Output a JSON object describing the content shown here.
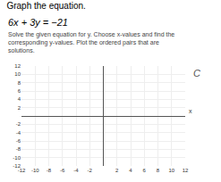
{
  "chart_data": {
    "type": "scatter",
    "title": "Graph the equation.",
    "subtitle": "6x + 3y = −21",
    "annotations": [
      "Solve the given equation for y. Choose x-values and find the corresponding y-values. Plot the ordered pairs that are solutions.",
      "C"
    ],
    "xlabel": "x",
    "xlim": [
      -12,
      12
    ],
    "ylim": [
      -12,
      12
    ],
    "xticks": [
      -12,
      -10,
      -8,
      -6,
      -4,
      -2,
      {
        "value": 0,
        "label": null
      },
      2,
      4,
      6,
      8,
      10,
      12
    ],
    "yticks": [
      -12,
      -10,
      -8,
      -6,
      -4,
      -2,
      {
        "value": 0,
        "label": null
      },
      2,
      4,
      6,
      8,
      10,
      12
    ],
    "grid": true
  }
}
